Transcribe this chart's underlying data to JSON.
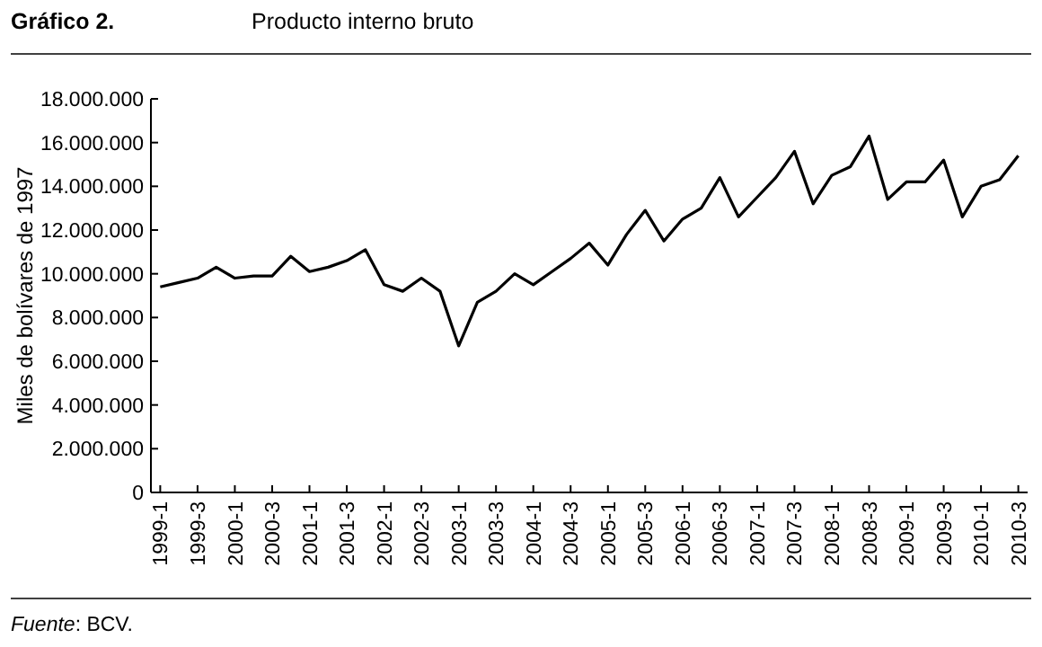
{
  "chart_data": {
    "type": "line",
    "title": "Gráfico 2.",
    "subtitle": "Producto interno bruto",
    "ylabel": "Miles de bolívares de 1997",
    "annotations": [
      "*Fuente*: BCV."
    ],
    "categories": [
      "1999-1",
      null,
      "1999-3",
      null,
      "2000-1",
      null,
      "2000-3",
      null,
      "2001-1",
      null,
      "2001-3",
      null,
      "2002-1",
      null,
      "2002-3",
      null,
      "2003-1",
      null,
      "2003-3",
      null,
      "2004-1",
      null,
      "2004-3",
      null,
      "2005-1",
      null,
      "2005-3",
      null,
      "2006-1",
      null,
      "2006-3",
      null,
      "2007-1",
      null,
      "2007-3",
      null,
      "2008-1",
      null,
      "2008-3",
      null,
      "2009-1",
      null,
      "2009-3",
      null,
      "2010-1",
      null,
      "2010-3"
    ],
    "series": [
      {
        "color": "#000000",
        "values": [
          9400000,
          9600000,
          9800000,
          10300000,
          9800000,
          9900000,
          9900000,
          10800000,
          10100000,
          10300000,
          10600000,
          11100000,
          9500000,
          9200000,
          9800000,
          9200000,
          6700000,
          8700000,
          9200000,
          10000000,
          9500000,
          10100000,
          10700000,
          11400000,
          10400000,
          11800000,
          12900000,
          11500000,
          12500000,
          13000000,
          14400000,
          12600000,
          13500000,
          14400000,
          15600000,
          13200000,
          14500000,
          14900000,
          16300000,
          13400000,
          14200000,
          14200000,
          15200000,
          12600000,
          14000000,
          14300000,
          15400000
        ]
      }
    ],
    "ylim": [
      0,
      18000000
    ],
    "yticks": [
      {
        "value": 0,
        "label": "0"
      },
      {
        "value": 2000000,
        "label": "2.000.000"
      },
      {
        "value": 4000000,
        "label": "4.000.000"
      },
      {
        "value": 6000000,
        "label": "6.000.000"
      },
      {
        "value": 8000000,
        "label": "8.000.000"
      },
      {
        "value": 10000000,
        "label": "10.000.000"
      },
      {
        "value": 12000000,
        "label": "12.000.000"
      },
      {
        "value": 14000000,
        "label": "14.000.000"
      },
      {
        "value": 16000000,
        "label": "16.000.000"
      },
      {
        "value": 18000000,
        "label": "18.000.000"
      }
    ],
    "marker": "none",
    "line_style": "solid"
  }
}
